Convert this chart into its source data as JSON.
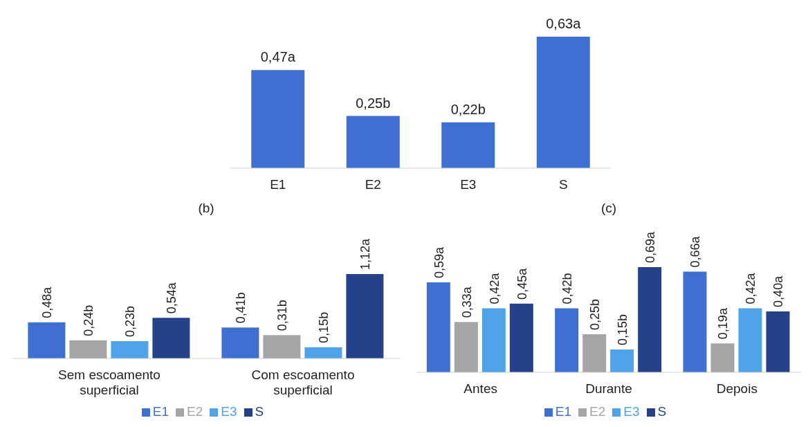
{
  "chart_data": [
    {
      "type": "bar",
      "categories": [
        "E1",
        "E2",
        "E3",
        "S"
      ],
      "values": [
        0.47,
        0.25,
        0.22,
        0.63
      ],
      "color": "#3f6fd1",
      "data_labels": true,
      "value_labels": [
        "0,47a",
        "0,25b",
        "0,22b",
        "0,63a"
      ],
      "grid": false,
      "legend": false
    },
    {
      "type": "bar",
      "title": "(b)",
      "categories": [
        "Sem escoamento superficial",
        "Com escoamento superficial"
      ],
      "series": [
        {
          "name": "E1",
          "color": "#3f6fd1",
          "values": [
            0.48,
            0.41
          ],
          "value_labels": [
            "0,48a",
            "0,41b"
          ]
        },
        {
          "name": "E2",
          "color": "#a5a5a5",
          "values": [
            0.24,
            0.31
          ],
          "value_labels": [
            "0,24b",
            "0,31b"
          ]
        },
        {
          "name": "E3",
          "color": "#4fa3e8",
          "values": [
            0.23,
            0.15
          ],
          "value_labels": [
            "0,23b",
            "0,15b"
          ]
        },
        {
          "name": "S",
          "color": "#25418a",
          "values": [
            0.54,
            1.12
          ],
          "value_labels": [
            "0,54a",
            "1,12a"
          ]
        }
      ],
      "data_labels": true,
      "grid": false,
      "legend": "bottom"
    },
    {
      "type": "bar",
      "title": "(c)",
      "categories": [
        "Antes",
        "Durante",
        "Depois"
      ],
      "series": [
        {
          "name": "E1",
          "color": "#3f6fd1",
          "values": [
            0.59,
            0.42,
            0.66
          ],
          "value_labels": [
            "0,59a",
            "0,42b",
            "0,66a"
          ]
        },
        {
          "name": "E2",
          "color": "#a5a5a5",
          "values": [
            0.33,
            0.25,
            0.19
          ],
          "value_labels": [
            "0,33a",
            "0,25b",
            "0,19a"
          ]
        },
        {
          "name": "E3",
          "color": "#4fa3e8",
          "values": [
            0.42,
            0.15,
            0.42
          ],
          "value_labels": [
            "0,42a",
            "0,15b",
            "0,42a"
          ]
        },
        {
          "name": "S",
          "color": "#25418a",
          "values": [
            0.45,
            0.69,
            0.4
          ],
          "value_labels": [
            "0,45a",
            "0,69a",
            "0,40a"
          ]
        }
      ],
      "data_labels": true,
      "grid": false,
      "legend": "bottom"
    }
  ]
}
